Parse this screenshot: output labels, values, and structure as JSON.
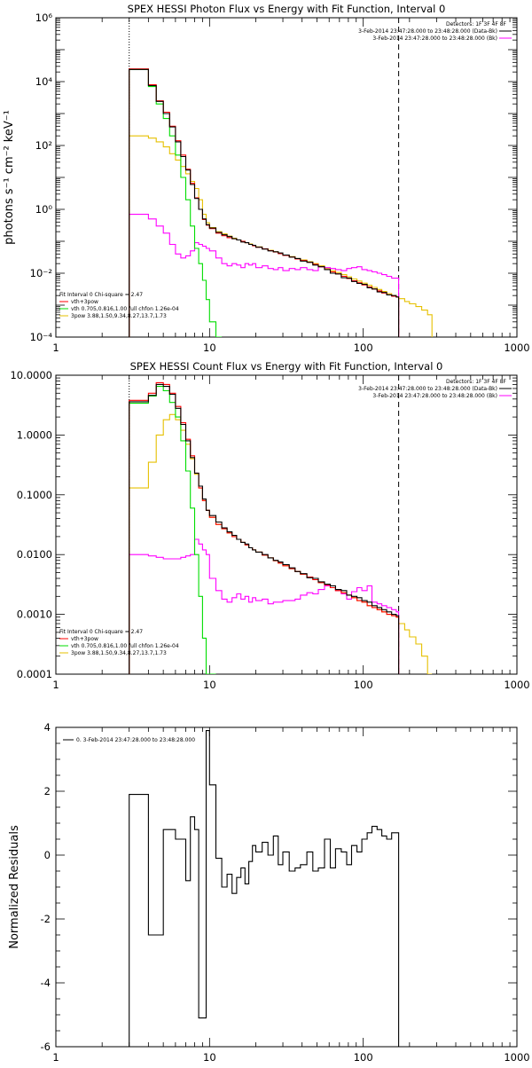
{
  "panels": [
    {
      "title": "SPEX HESSI Photon Flux vs Energy with Fit Function, Interval 0",
      "ylabel": "photons s⁻¹ cm⁻² keV⁻¹",
      "detectors": "Detectors: 1F 3F 4F 8F",
      "legend_right": [
        {
          "text": "3-Feb-2014 23:47:28.000 to 23:48:28.000 (Data-Bk)",
          "color": "#000000"
        },
        {
          "text": "3-Feb-2014 23:47:28.000 to 23:48:28.000 (Bk)",
          "color": "#ff00ff"
        }
      ],
      "legend_left": [
        {
          "text": "Fit Interval 0   Chi-square = 2.47",
          "color": ""
        },
        {
          "text": "vth+3pow",
          "color": "#ff0000"
        },
        {
          "text": "vth 0.705,0.816,1.00  full chfon 1.26e-04",
          "color": "#00dd00"
        },
        {
          "text": "3pow 3.88,1.50,9.34,8.27,13.7,1.73",
          "color": "#e6c000"
        }
      ],
      "x_tick_labels": [
        "1",
        "10",
        "100",
        "1000"
      ],
      "y_tick_labels": [
        "10⁻⁴",
        "10⁻²",
        "10⁰",
        "10²",
        "10⁴",
        "10⁶"
      ]
    },
    {
      "title": "SPEX HESSI Count Flux vs Energy with Fit Function, Interval 0",
      "ylabel": "",
      "detectors": "Detectors: 1F 3F 4F 8F",
      "legend_right": [
        {
          "text": "3-Feb-2014 23:47:28.000 to 23:48:28.000 (Data-Bk)",
          "color": "#000000"
        },
        {
          "text": "3-Feb-2014 23:47:28.000 to 23:48:28.000 (Bk)",
          "color": "#ff00ff"
        }
      ],
      "legend_left": [
        {
          "text": "Fit Interval 0   Chi-square = 2.47",
          "color": ""
        },
        {
          "text": "vth+3pow",
          "color": "#ff0000"
        },
        {
          "text": "vth 0.705,0.816,1.00  full chfon 1.26e-04",
          "color": "#00dd00"
        },
        {
          "text": "3pow 3.88,1.50,9.34,8.27,13.7,1.73",
          "color": "#e6c000"
        }
      ],
      "x_tick_labels": [
        "1",
        "10",
        "100",
        "1000"
      ],
      "y_tick_labels": [
        "0.0001",
        "0.0010",
        "0.0100",
        "0.1000",
        "1.0000",
        "10.0000"
      ]
    },
    {
      "title": "",
      "ylabel": "Normalized Residuals",
      "legend_left": [
        {
          "text": "0.  3-Feb-2014 23:47:28.000 to 23:48:28.000",
          "color": "#000000"
        }
      ],
      "x_tick_labels": [
        "1",
        "10",
        "100",
        "1000"
      ],
      "y_tick_labels": [
        "-6",
        "-4",
        "-2",
        "0",
        "2",
        "4"
      ]
    }
  ],
  "chart_data": [
    {
      "type": "line",
      "title": "SPEX HESSI Photon Flux vs Energy with Fit Function, Interval 0",
      "xlabel": "",
      "ylabel": "photons s⁻¹ cm⁻² keV⁻¹",
      "xscale": "log",
      "yscale": "log",
      "xlim": [
        1,
        1000
      ],
      "ylim": [
        0.0001,
        1000000
      ],
      "step": true,
      "vlines": [
        {
          "x": 3.0,
          "style": "dotted"
        },
        {
          "x": 170,
          "style": "dashed"
        }
      ],
      "bin_edges": [
        3.0,
        4.0,
        4.5,
        5.0,
        5.5,
        6.0,
        6.5,
        7.0,
        7.5,
        8.0,
        8.5,
        9.0,
        9.5,
        10.0,
        11.0,
        12.0,
        13.0,
        14.0,
        15.0,
        16.0,
        17.0,
        18.0,
        19.0,
        20.0,
        22.0,
        24.0,
        26.0,
        28.0,
        30.0,
        33.0,
        36.0,
        39.0,
        43.0,
        47.0,
        51.0,
        56.0,
        61.0,
        66.0,
        72.0,
        78.0,
        84.0,
        91.0,
        98.0,
        106.0,
        114.0,
        123.0,
        132.0,
        142.0,
        153.0,
        164.0,
        170.0,
        186.0,
        200.0,
        220.0,
        240.0,
        262.0,
        280.0
      ],
      "series": [
        {
          "name": "vth+3pow",
          "color": "#ff0000",
          "values": [
            25000,
            8000,
            2500,
            1100,
            400,
            140,
            50,
            18,
            6.5,
            2.3,
            1.0,
            0.48,
            0.32,
            0.25,
            0.18,
            0.15,
            0.13,
            0.12,
            0.11,
            0.1,
            0.09,
            0.08,
            0.072,
            0.065,
            0.058,
            0.051,
            0.046,
            0.041,
            0.036,
            0.032,
            0.028,
            0.025,
            0.022,
            0.019,
            0.016,
            0.013,
            0.011,
            0.0095,
            0.008,
            0.0068,
            0.0058,
            0.005,
            0.0043,
            0.0037,
            0.0032,
            0.0028,
            0.0024,
            0.0021,
            0.0019,
            0.0018
          ]
        },
        {
          "name": "",
          "color": "#000000",
          "values": [
            24000,
            7500,
            2400,
            1000,
            380,
            130,
            45,
            17,
            6.0,
            2.2,
            1.0,
            0.5,
            0.33,
            0.26,
            0.19,
            0.16,
            0.14,
            0.12,
            0.11,
            0.095,
            0.09,
            0.08,
            0.075,
            0.065,
            0.057,
            0.05,
            0.047,
            0.043,
            0.037,
            0.032,
            0.029,
            0.024,
            0.022,
            0.018,
            0.016,
            0.013,
            0.01,
            0.0095,
            0.0072,
            0.007,
            0.0055,
            0.0048,
            0.0045,
            0.0035,
            0.0032,
            0.0026,
            0.0025,
            0.0021,
            0.002,
            0.0018
          ]
        },
        {
          "name": "",
          "color": "#00dd00",
          "values": [
            24000,
            7000,
            2000,
            700,
            200,
            50,
            10,
            2.0,
            0.3,
            0.06,
            0.02,
            0.006,
            0.0015,
            0.0003,
            5e-05
          ]
        },
        {
          "name": "",
          "color": "#e6c000",
          "values": [
            200,
            170,
            130,
            90,
            55,
            35,
            22,
            13,
            7.5,
            4.5,
            2.0,
            0.7,
            0.38,
            0.27,
            0.2,
            0.17,
            0.145,
            0.125,
            0.11,
            0.1,
            0.09,
            0.082,
            0.075,
            0.067,
            0.058,
            0.052,
            0.047,
            0.042,
            0.037,
            0.033,
            0.029,
            0.026,
            0.023,
            0.02,
            0.017,
            0.014,
            0.012,
            0.0105,
            0.009,
            0.0077,
            0.0066,
            0.0057,
            0.0049,
            0.0042,
            0.0036,
            0.0031,
            0.0027,
            0.0023,
            0.002,
            0.0018,
            0.0016,
            0.0013,
            0.0011,
            0.0009,
            0.0007,
            0.0005
          ]
        },
        {
          "name": "",
          "color": "#ff00ff",
          "values": [
            0.7,
            0.5,
            0.3,
            0.18,
            0.08,
            0.04,
            0.03,
            0.035,
            0.05,
            0.09,
            0.08,
            0.07,
            0.06,
            0.05,
            0.03,
            0.02,
            0.017,
            0.02,
            0.018,
            0.015,
            0.02,
            0.018,
            0.02,
            0.015,
            0.017,
            0.014,
            0.013,
            0.015,
            0.012,
            0.014,
            0.013,
            0.015,
            0.013,
            0.012,
            0.016,
            0.015,
            0.014,
            0.013,
            0.012,
            0.014,
            0.015,
            0.016,
            0.013,
            0.012,
            0.011,
            0.01,
            0.009,
            0.008,
            0.007,
            0.007
          ]
        }
      ]
    },
    {
      "type": "line",
      "title": "SPEX HESSI Count Flux vs Energy with Fit Function, Interval 0",
      "xlabel": "",
      "ylabel": "",
      "xscale": "log",
      "yscale": "log",
      "xlim": [
        1,
        1000
      ],
      "ylim": [
        0.0001,
        10
      ],
      "step": true,
      "vlines": [
        {
          "x": 3.0,
          "style": "dotted"
        },
        {
          "x": 170,
          "style": "dashed"
        }
      ],
      "bin_edges": [
        3.0,
        4.0,
        4.5,
        5.0,
        5.5,
        6.0,
        6.5,
        7.0,
        7.5,
        8.0,
        8.5,
        9.0,
        9.5,
        10.0,
        11.0,
        12.0,
        13.0,
        14.0,
        15.0,
        16.0,
        17.0,
        18.0,
        19.0,
        20.0,
        22.0,
        24.0,
        26.0,
        28.0,
        30.0,
        33.0,
        36.0,
        39.0,
        43.0,
        47.0,
        51.0,
        56.0,
        61.0,
        66.0,
        72.0,
        78.0,
        84.0,
        91.0,
        98.0,
        106.0,
        114.0,
        123.0,
        132.0,
        142.0,
        153.0,
        164.0,
        170.0,
        186.0,
        200.0,
        220.0,
        240.0,
        262.0,
        280.0
      ],
      "series": [
        {
          "name": "vth+3pow",
          "color": "#ff0000",
          "values": [
            3.8,
            5.0,
            7.5,
            7.0,
            5.0,
            3.0,
            1.6,
            0.85,
            0.45,
            0.23,
            0.13,
            0.08,
            0.055,
            0.042,
            0.032,
            0.027,
            0.023,
            0.02,
            0.018,
            0.016,
            0.0145,
            0.013,
            0.012,
            0.011,
            0.0098,
            0.0088,
            0.0079,
            0.0072,
            0.0065,
            0.0058,
            0.0052,
            0.0047,
            0.0042,
            0.0038,
            0.0034,
            0.0031,
            0.0028,
            0.0025,
            0.0023,
            0.0021,
            0.0019,
            0.0017,
            0.0016,
            0.0014,
            0.0013,
            0.0012,
            0.0011,
            0.001,
            0.00095,
            0.0009
          ]
        },
        {
          "name": "",
          "color": "#000000",
          "values": [
            3.6,
            4.6,
            7.0,
            6.5,
            4.8,
            2.8,
            1.5,
            0.8,
            0.42,
            0.23,
            0.14,
            0.085,
            0.055,
            0.045,
            0.035,
            0.028,
            0.024,
            0.021,
            0.018,
            0.016,
            0.015,
            0.013,
            0.012,
            0.011,
            0.01,
            0.0088,
            0.008,
            0.0075,
            0.0068,
            0.006,
            0.0052,
            0.0048,
            0.0041,
            0.004,
            0.0035,
            0.0032,
            0.003,
            0.0026,
            0.0025,
            0.0021,
            0.002,
            0.0019,
            0.0017,
            0.0016,
            0.0014,
            0.0013,
            0.0012,
            0.0011,
            0.001,
            0.00095
          ]
        },
        {
          "name": "",
          "color": "#00dd00",
          "values": [
            3.4,
            4.5,
            6.5,
            5.5,
            3.5,
            2.0,
            0.8,
            0.25,
            0.06,
            0.01,
            0.002,
            0.0004,
            8e-05,
            2e-05
          ]
        },
        {
          "name": "",
          "color": "#e6c000",
          "values": [
            0.13,
            0.35,
            1.0,
            1.8,
            2.2,
            1.8,
            1.2,
            0.7,
            0.4,
            0.22,
            0.13,
            0.08,
            0.055,
            0.042,
            0.032,
            0.027,
            0.023,
            0.02,
            0.018,
            0.016,
            0.0145,
            0.013,
            0.012,
            0.011,
            0.0098,
            0.0088,
            0.0079,
            0.0072,
            0.0065,
            0.0058,
            0.0052,
            0.0047,
            0.0042,
            0.0038,
            0.0034,
            0.0031,
            0.0028,
            0.0025,
            0.0023,
            0.0021,
            0.0019,
            0.0017,
            0.0016,
            0.0014,
            0.0013,
            0.0012,
            0.0011,
            0.001,
            0.00095,
            0.0009,
            0.0007,
            0.00055,
            0.00042,
            0.00032,
            0.0002,
            0.0001
          ]
        },
        {
          "name": "",
          "color": "#ff00ff",
          "values": [
            0.01,
            0.0095,
            0.009,
            0.0085,
            0.0085,
            0.0085,
            0.009,
            0.0095,
            0.01,
            0.018,
            0.015,
            0.012,
            0.01,
            0.004,
            0.0025,
            0.0018,
            0.0016,
            0.0019,
            0.0022,
            0.0018,
            0.002,
            0.0016,
            0.0019,
            0.0017,
            0.0018,
            0.0015,
            0.0016,
            0.0016,
            0.0017,
            0.0017,
            0.0018,
            0.0021,
            0.0023,
            0.0022,
            0.0026,
            0.003,
            0.0028,
            0.0025,
            0.0022,
            0.0018,
            0.0024,
            0.0028,
            0.0025,
            0.003,
            0.0016,
            0.0015,
            0.0014,
            0.0013,
            0.0012,
            0.0011
          ]
        }
      ]
    },
    {
      "type": "line",
      "title": "",
      "xlabel": "",
      "ylabel": "Normalized Residuals",
      "xscale": "log",
      "yscale": "linear",
      "xlim": [
        1,
        1000
      ],
      "ylim": [
        -6,
        4
      ],
      "step": true,
      "bin_edges": [
        3.0,
        4.0,
        4.5,
        5.0,
        5.5,
        6.0,
        6.5,
        7.0,
        7.5,
        8.0,
        8.5,
        9.0,
        9.5,
        10.0,
        11.0,
        12.0,
        13.0,
        14.0,
        15.0,
        16.0,
        17.0,
        18.0,
        19.0,
        20.0,
        22.0,
        24.0,
        26.0,
        28.0,
        30.0,
        33.0,
        36.0,
        39.0,
        43.0,
        47.0,
        51.0,
        56.0,
        61.0,
        66.0,
        72.0,
        78.0,
        84.0,
        91.0,
        98.0,
        106.0,
        114.0,
        123.0,
        132.0,
        142.0,
        153.0,
        164.0,
        170.0
      ],
      "series": [
        {
          "name": "0.  3-Feb-2014 23:47:28.000 to 23:48:28.000",
          "color": "#000000",
          "values": [
            1.9,
            -2.5,
            -2.5,
            0.8,
            0.8,
            0.5,
            0.5,
            -0.8,
            1.2,
            0.8,
            -5.1,
            -5.1,
            3.9,
            2.2,
            -0.1,
            -1.0,
            -0.6,
            -1.2,
            -0.7,
            -0.4,
            -0.9,
            -0.2,
            0.3,
            0.1,
            0.4,
            0.0,
            0.6,
            -0.3,
            0.1,
            -0.5,
            -0.4,
            -0.3,
            0.1,
            -0.5,
            -0.4,
            0.5,
            -0.4,
            0.2,
            0.1,
            -0.3,
            0.3,
            0.1,
            0.5,
            0.7,
            0.9,
            0.8,
            0.6,
            0.5,
            0.7,
            0.7
          ]
        }
      ]
    }
  ]
}
